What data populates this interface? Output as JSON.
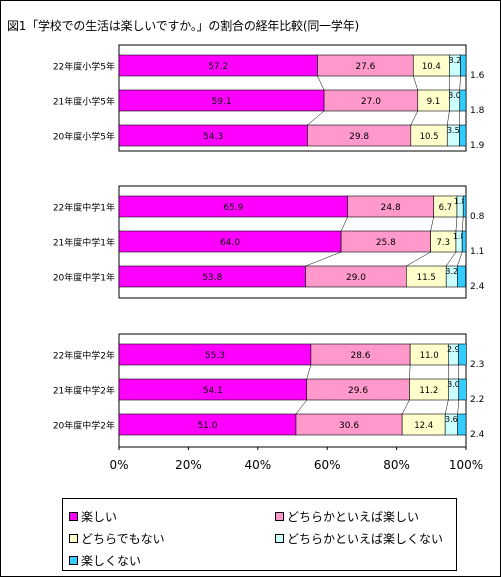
{
  "chart_data": {
    "type": "bar",
    "orientation": "horizontal",
    "stacked": true,
    "title": "図1「学校での生活は楽しいですか。」の割合の経年比較(同一学年)",
    "xlim": [
      0,
      100
    ],
    "x_ticks": [
      "0%",
      "20%",
      "40%",
      "60%",
      "80%",
      "100%"
    ],
    "grid": false,
    "legend_position": "bottom",
    "series": [
      {
        "name": "楽しい",
        "color": "#ff00ff"
      },
      {
        "name": "どちらかといえば楽しい",
        "color": "#ff99cc"
      },
      {
        "name": "どちらでもない",
        "color": "#ffffcc"
      },
      {
        "name": "どちらかといえば楽しくない",
        "color": "#ccffff"
      },
      {
        "name": "楽しくない",
        "color": "#33ccff"
      }
    ],
    "groups": [
      {
        "bars": [
          {
            "label": "22年度小学5年",
            "values": [
              57.2,
              27.6,
              10.4,
              3.2,
              1.6
            ],
            "value_labels": [
              "57.2",
              "27.6",
              "10.4",
              "3.2",
              "1.6"
            ]
          },
          {
            "label": "21年度小学5年",
            "values": [
              59.1,
              27.0,
              9.1,
              3.0,
              1.8
            ],
            "value_labels": [
              "59.1",
              "27.0",
              "9.1",
              "3.0",
              "1.8"
            ]
          },
          {
            "label": "20年度小学5年",
            "values": [
              54.3,
              29.8,
              10.5,
              3.5,
              1.9
            ],
            "value_labels": [
              "54.3",
              "29.8",
              "10.5",
              "3.5",
              "1.9"
            ]
          }
        ]
      },
      {
        "bars": [
          {
            "label": "22年度中学1年",
            "values": [
              65.9,
              24.8,
              6.7,
              1.8,
              0.8
            ],
            "value_labels": [
              "65.9",
              "24.8",
              "6.7",
              "1.8",
              "0.8"
            ]
          },
          {
            "label": "21年度中学1年",
            "values": [
              64.0,
              25.8,
              7.3,
              1.8,
              1.1
            ],
            "value_labels": [
              "64.0",
              "25.8",
              "7.3",
              "1.8",
              "1.1"
            ]
          },
          {
            "label": "20年度中学1年",
            "values": [
              53.8,
              29.0,
              11.5,
              3.2,
              2.4
            ],
            "value_labels": [
              "53.8",
              "29.0",
              "11.5",
              "3.2",
              "2.4"
            ]
          }
        ]
      },
      {
        "bars": [
          {
            "label": "22年度中学2年",
            "values": [
              55.3,
              28.6,
              11.0,
              2.9,
              2.3
            ],
            "value_labels": [
              "55.3",
              "28.6",
              "11.0",
              "2.9",
              "2.3"
            ]
          },
          {
            "label": "21年度中学2年",
            "values": [
              54.1,
              29.6,
              11.2,
              3.0,
              2.2
            ],
            "value_labels": [
              "54.1",
              "29.6",
              "11.2",
              "3.0",
              "2.2"
            ]
          },
          {
            "label": "20年度中学2年",
            "values": [
              51.0,
              30.6,
              12.4,
              3.6,
              2.4
            ],
            "value_labels": [
              "51.0",
              "30.6",
              "12.4",
              "3.6",
              "2.4"
            ]
          }
        ]
      }
    ]
  }
}
